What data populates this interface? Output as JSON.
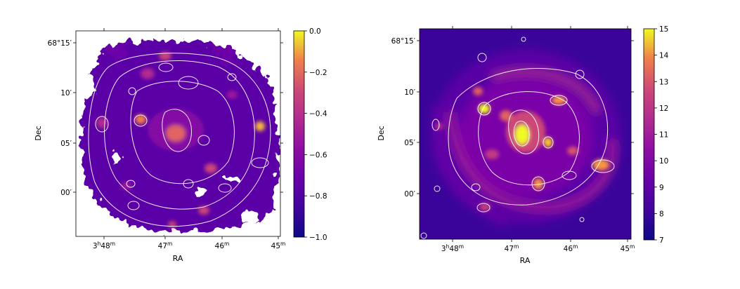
{
  "chart_data": [
    {
      "type": "heatmap",
      "title": "",
      "xlabel": "RA",
      "ylabel": "Dec",
      "x_ticks": [
        "3h48m",
        "47m",
        "46m",
        "45m"
      ],
      "y_ticks": [
        "68°15′",
        "10′",
        "05′",
        "00′"
      ],
      "colormap": "plasma",
      "colorbar": {
        "min": -1.0,
        "max": 0.0,
        "ticks": [
          0.0,
          -0.2,
          -0.4,
          -0.6,
          -0.8,
          -1.0
        ],
        "tick_labels": [
          "0.0",
          "−0.2",
          "−0.4",
          "−0.6",
          "−0.8",
          "−1.0"
        ]
      },
      "contours": true,
      "contour_color": "#ffffff",
      "masked_background": "#ffffff"
    },
    {
      "type": "heatmap",
      "title": "",
      "xlabel": "RA",
      "ylabel": "Dec",
      "x_ticks": [
        "3h48m",
        "47m",
        "46m",
        "45m"
      ],
      "y_ticks": [
        "68°15′",
        "10′",
        "05′",
        "00′"
      ],
      "colormap": "plasma",
      "colorbar": {
        "min": 7,
        "max": 15,
        "ticks": [
          15,
          14,
          13,
          12,
          11,
          10,
          9,
          8,
          7
        ],
        "tick_labels": [
          "15",
          "14",
          "13",
          "12",
          "11",
          "10",
          "9",
          "8",
          "7"
        ]
      },
      "contours": true,
      "contour_color": "#ffffff"
    }
  ]
}
